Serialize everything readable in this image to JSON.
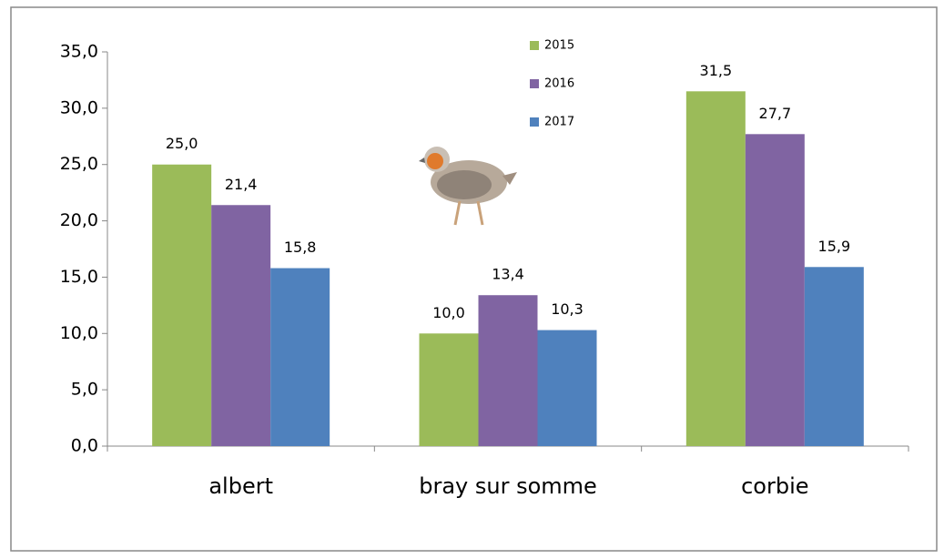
{
  "chart_data": {
    "type": "bar",
    "categories": [
      "albert",
      "bray sur somme",
      "corbie"
    ],
    "series": [
      {
        "name": "2015",
        "color": "#9bbb59",
        "values": [
          25.0,
          10.0,
          31.5
        ],
        "value_labels": [
          "25,0",
          "10,0",
          "31,5"
        ]
      },
      {
        "name": "2016",
        "color": "#8064a2",
        "values": [
          21.4,
          13.4,
          27.7
        ],
        "value_labels": [
          "21,4",
          "13,4",
          "27,7"
        ]
      },
      {
        "name": "2017",
        "color": "#4f81bd",
        "values": [
          15.8,
          10.3,
          15.9
        ],
        "value_labels": [
          "15,8",
          "10,3",
          "15,9"
        ]
      }
    ],
    "ylim": [
      0,
      35
    ],
    "yticks": [
      {
        "value": 0,
        "label": "0,0"
      },
      {
        "value": 5,
        "label": "5,0"
      },
      {
        "value": 10,
        "label": "10,0"
      },
      {
        "value": 15,
        "label": "15,0"
      },
      {
        "value": 20,
        "label": "20,0"
      },
      {
        "value": 25,
        "label": "25,0"
      },
      {
        "value": 30,
        "label": "30,0"
      },
      {
        "value": 35,
        "label": "35,0"
      }
    ],
    "grid": false,
    "legend": "top"
  }
}
